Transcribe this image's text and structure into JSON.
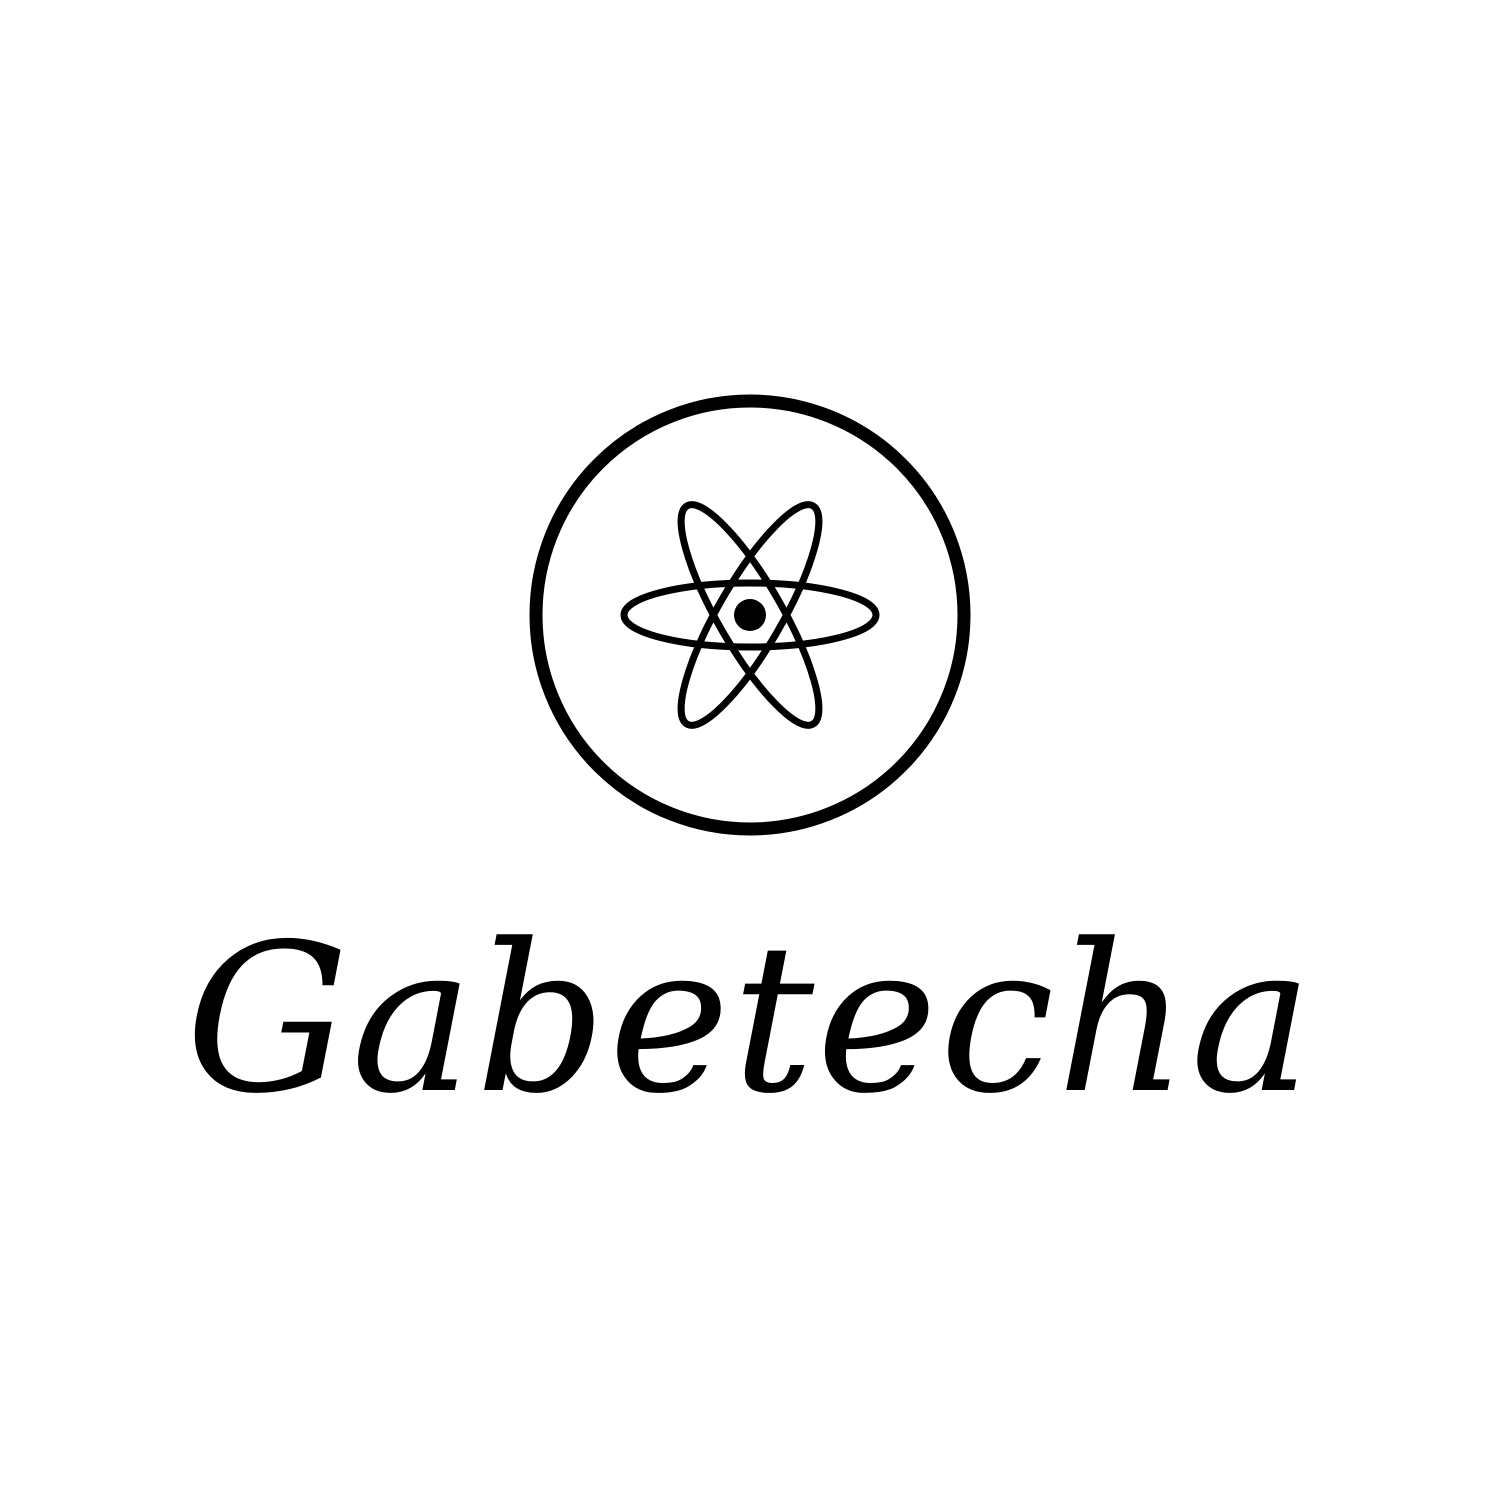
{
  "brand": {
    "name": "Gabetecha",
    "icon": "atom-icon",
    "ink_color": "#000000",
    "background_color": "#ffffff"
  }
}
